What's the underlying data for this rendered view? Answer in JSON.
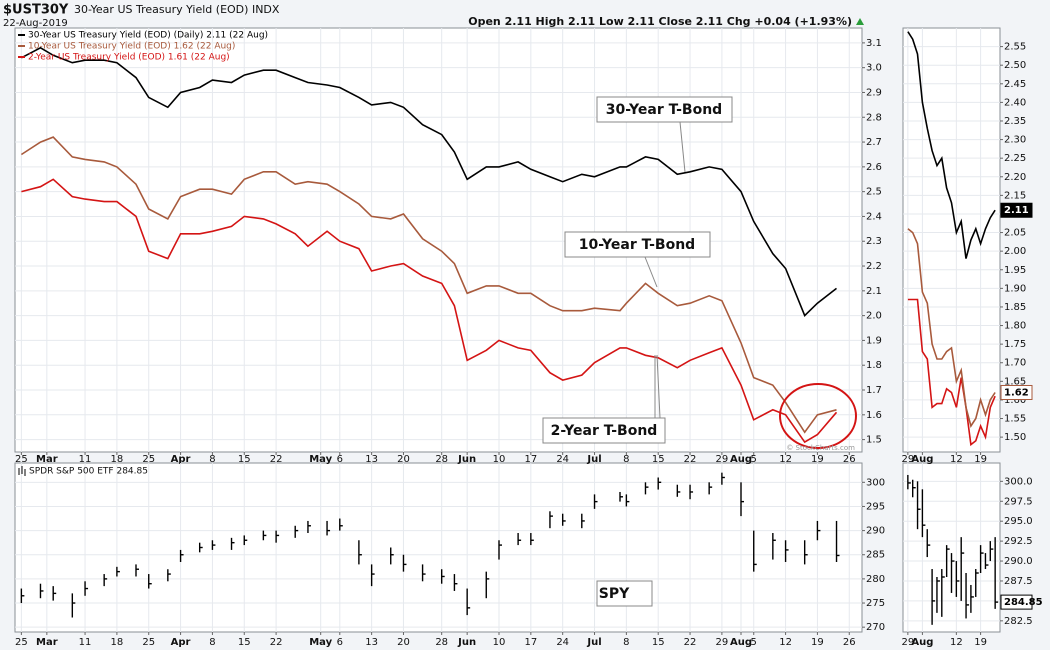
{
  "chart_data": [
    {
      "type": "line",
      "title": "$UST30Y",
      "subtitle": "30-Year US Treasury Yield (EOD) INDX",
      "date": "22-Aug-2019",
      "quote": "Open 2.11 High 2.11 Low 2.11 Close 2.11 Chg +0.04 (+1.93%)",
      "watermark": "© StockCharts.com",
      "annotations": [
        "30-Year T-Bond",
        "10-Year T-Bond",
        "2-Year T-Bond"
      ],
      "grid": true,
      "xlim": [
        "2019-02-22",
        "2019-08-28"
      ],
      "xticks": [
        {
          "value": "2019-02-25",
          "label": "25"
        },
        {
          "value": "2019-03-01",
          "label": "Mar"
        },
        {
          "value": "2019-03-11",
          "label": "11"
        },
        {
          "value": "2019-03-18",
          "label": "18"
        },
        {
          "value": "2019-03-25",
          "label": "25"
        },
        {
          "value": "2019-04-01",
          "label": "Apr"
        },
        {
          "value": "2019-04-08",
          "label": "8"
        },
        {
          "value": "2019-04-15",
          "label": "15"
        },
        {
          "value": "2019-04-22",
          "label": "22"
        },
        {
          "value": "2019-05-01",
          "label": "May"
        },
        {
          "value": "2019-05-06",
          "label": "6"
        },
        {
          "value": "2019-05-13",
          "label": "13"
        },
        {
          "value": "2019-05-20",
          "label": "20"
        },
        {
          "value": "2019-05-28",
          "label": "28"
        },
        {
          "value": "2019-06-03",
          "label": "Jun"
        },
        {
          "value": "2019-06-10",
          "label": "10"
        },
        {
          "value": "2019-06-17",
          "label": "17"
        },
        {
          "value": "2019-06-24",
          "label": "24"
        },
        {
          "value": "2019-07-01",
          "label": "Jul"
        },
        {
          "value": "2019-07-08",
          "label": "8"
        },
        {
          "value": "2019-07-15",
          "label": "15"
        },
        {
          "value": "2019-07-22",
          "label": "22"
        },
        {
          "value": "2019-07-29",
          "label": "29"
        },
        {
          "value": "2019-08-01",
          "label": "Aug"
        },
        {
          "value": "2019-08-05",
          "label": "5"
        },
        {
          "value": "2019-08-12",
          "label": "12"
        },
        {
          "value": "2019-08-19",
          "label": "19"
        },
        {
          "value": "2019-08-26",
          "label": "26"
        }
      ],
      "ylim": [
        1.45,
        3.16
      ],
      "yticks": [
        1.5,
        1.6,
        1.7,
        1.8,
        1.9,
        {
          "value": 2,
          "label": "2.0"
        },
        2.1,
        2.2,
        2.3,
        2.4,
        2.5,
        2.6,
        2.7,
        2.8,
        2.9,
        {
          "value": 3,
          "label": "3.0"
        },
        3.1
      ],
      "x": [
        "2019-02-25",
        "2019-02-28",
        "2019-03-04",
        "2019-03-07",
        "2019-03-11",
        "2019-03-14",
        "2019-03-18",
        "2019-03-21",
        "2019-03-25",
        "2019-03-28",
        "2019-04-01",
        "2019-04-04",
        "2019-04-08",
        "2019-04-11",
        "2019-04-15",
        "2019-04-18",
        "2019-04-22",
        "2019-04-25",
        "2019-04-29",
        "2019-05-02",
        "2019-05-06",
        "2019-05-09",
        "2019-05-13",
        "2019-05-16",
        "2019-05-20",
        "2019-05-23",
        "2019-05-28",
        "2019-05-30",
        "2019-06-03",
        "2019-06-06",
        "2019-06-10",
        "2019-06-13",
        "2019-06-17",
        "2019-06-20",
        "2019-06-24",
        "2019-06-27",
        "2019-07-01",
        "2019-07-05",
        "2019-07-08",
        "2019-07-11",
        "2019-07-15",
        "2019-07-18",
        "2019-07-22",
        "2019-07-25",
        "2019-07-29",
        "2019-08-01",
        "2019-08-05",
        "2019-08-08",
        "2019-08-12",
        "2019-08-15",
        "2019-08-19",
        "2019-08-22"
      ],
      "series": [
        {
          "name": "30-Year US Treasury Yield (EOD) (Daily) 2.11 (22 Aug)",
          "color": "#000000",
          "values": [
            3.04,
            3.08,
            3.05,
            3.02,
            3.03,
            3.03,
            3.02,
            2.96,
            2.88,
            2.84,
            2.9,
            2.92,
            2.95,
            2.94,
            2.97,
            2.99,
            2.99,
            2.96,
            2.94,
            2.93,
            2.92,
            2.88,
            2.85,
            2.86,
            2.84,
            2.77,
            2.73,
            2.66,
            2.55,
            2.6,
            2.6,
            2.62,
            2.59,
            2.56,
            2.54,
            2.57,
            2.56,
            2.6,
            2.6,
            2.64,
            2.63,
            2.57,
            2.58,
            2.6,
            2.59,
            2.5,
            2.38,
            2.25,
            2.19,
            2.0,
            2.05,
            2.11
          ]
        },
        {
          "name": "10-Year US Treasury Yield (EOD) 1.62 (22 Aug)",
          "color": "#a85a3c",
          "values": [
            2.65,
            2.7,
            2.72,
            2.64,
            2.63,
            2.62,
            2.6,
            2.53,
            2.43,
            2.39,
            2.48,
            2.51,
            2.51,
            2.49,
            2.55,
            2.58,
            2.58,
            2.53,
            2.54,
            2.53,
            2.5,
            2.45,
            2.4,
            2.39,
            2.41,
            2.31,
            2.26,
            2.21,
            2.09,
            2.12,
            2.12,
            2.09,
            2.09,
            2.04,
            2.02,
            2.02,
            2.03,
            2.02,
            2.05,
            2.13,
            2.09,
            2.04,
            2.05,
            2.08,
            2.06,
            1.89,
            1.75,
            1.72,
            1.65,
            1.53,
            1.6,
            1.62
          ]
        },
        {
          "name": "2-Year US Treasury Yield (EOD) 1.61 (22 Aug)",
          "color": "#d41414",
          "values": [
            2.5,
            2.52,
            2.55,
            2.48,
            2.47,
            2.46,
            2.46,
            2.4,
            2.26,
            2.23,
            2.33,
            2.33,
            2.34,
            2.36,
            2.4,
            2.39,
            2.37,
            2.33,
            2.28,
            2.34,
            2.3,
            2.27,
            2.18,
            2.2,
            2.21,
            2.16,
            2.13,
            2.04,
            1.82,
            1.86,
            1.9,
            1.87,
            1.86,
            1.77,
            1.74,
            1.76,
            1.81,
            1.87,
            1.87,
            1.84,
            1.83,
            1.79,
            1.82,
            1.85,
            1.87,
            1.72,
            1.58,
            1.62,
            1.6,
            1.49,
            1.52,
            1.61
          ]
        }
      ]
    },
    {
      "type": "line",
      "grid": true,
      "xlim": [
        "2019-07-26",
        "2019-08-23"
      ],
      "xticks": [
        {
          "value": "2019-07-29",
          "label": "29"
        },
        {
          "value": "2019-08-01",
          "label": "Aug"
        },
        {
          "value": "2019-08-12",
          "label": "12"
        },
        {
          "value": "2019-08-19",
          "label": "19"
        }
      ],
      "ylim": [
        1.46,
        2.6
      ],
      "yticks": [
        {
          "value": 1.5,
          "label": "1.50"
        },
        1.55,
        {
          "value": 1.6,
          "label": "1.60"
        },
        1.65,
        {
          "value": 1.7,
          "label": "1.70"
        },
        1.75,
        {
          "value": 1.8,
          "label": "1.80"
        },
        1.85,
        {
          "value": 1.9,
          "label": "1.90"
        },
        1.95,
        {
          "value": 2,
          "label": "2.00"
        },
        2.05,
        {
          "value": 2.1,
          "label": "2.10"
        },
        2.15,
        {
          "value": 2.2,
          "label": "2.20"
        },
        2.25,
        {
          "value": 2.3,
          "label": "2.30"
        },
        2.35,
        {
          "value": 2.4,
          "label": "2.40"
        },
        2.45,
        {
          "value": 2.5,
          "label": "2.50"
        },
        2.55
      ],
      "x": [
        "2019-07-29",
        "2019-07-30",
        "2019-07-31",
        "2019-08-01",
        "2019-08-02",
        "2019-08-05",
        "2019-08-06",
        "2019-08-07",
        "2019-08-08",
        "2019-08-09",
        "2019-08-12",
        "2019-08-13",
        "2019-08-14",
        "2019-08-15",
        "2019-08-16",
        "2019-08-19",
        "2019-08-20",
        "2019-08-21",
        "2019-08-22"
      ],
      "series": [
        {
          "color": "#000000",
          "tag": true,
          "values": [
            2.59,
            2.57,
            2.53,
            2.4,
            2.33,
            2.27,
            2.23,
            2.25,
            2.17,
            2.13,
            2.05,
            2.08,
            1.98,
            2.03,
            2.06,
            2.02,
            2.06,
            2.09,
            2.11
          ]
        },
        {
          "color": "#d41414",
          "values": [
            1.87,
            1.87,
            1.87,
            1.73,
            1.71,
            1.58,
            1.59,
            1.59,
            1.63,
            1.62,
            1.58,
            1.66,
            1.58,
            1.48,
            1.49,
            1.53,
            1.5,
            1.58,
            1.61
          ]
        },
        {
          "color": "#a85a3c",
          "tag": true,
          "values": [
            2.06,
            2.05,
            2.02,
            1.89,
            1.86,
            1.75,
            1.71,
            1.71,
            1.73,
            1.74,
            1.65,
            1.68,
            1.58,
            1.53,
            1.55,
            1.6,
            1.56,
            1.6,
            1.62
          ]
        }
      ]
    },
    {
      "type": "hlc",
      "name": "SPDR S&P 500 ETF 284.85",
      "annotations": [
        "SPY"
      ],
      "grid": true,
      "color": "#000000",
      "xlim": [
        "2019-02-22",
        "2019-08-28"
      ],
      "xticks": [
        {
          "value": "2019-02-25",
          "label": "25"
        },
        {
          "value": "2019-03-01",
          "label": "Mar"
        },
        {
          "value": "2019-03-11",
          "label": "11"
        },
        {
          "value": "2019-03-18",
          "label": "18"
        },
        {
          "value": "2019-03-25",
          "label": "25"
        },
        {
          "value": "2019-04-01",
          "label": "Apr"
        },
        {
          "value": "2019-04-08",
          "label": "8"
        },
        {
          "value": "2019-04-15",
          "label": "15"
        },
        {
          "value": "2019-04-22",
          "label": "22"
        },
        {
          "value": "2019-05-01",
          "label": "May"
        },
        {
          "value": "2019-05-06",
          "label": "6"
        },
        {
          "value": "2019-05-13",
          "label": "13"
        },
        {
          "value": "2019-05-20",
          "label": "20"
        },
        {
          "value": "2019-05-28",
          "label": "28"
        },
        {
          "value": "2019-06-03",
          "label": "Jun"
        },
        {
          "value": "2019-06-10",
          "label": "10"
        },
        {
          "value": "2019-06-17",
          "label": "17"
        },
        {
          "value": "2019-06-24",
          "label": "24"
        },
        {
          "value": "2019-07-01",
          "label": "Jul"
        },
        {
          "value": "2019-07-08",
          "label": "8"
        },
        {
          "value": "2019-07-15",
          "label": "15"
        },
        {
          "value": "2019-07-22",
          "label": "22"
        },
        {
          "value": "2019-07-29",
          "label": "29"
        },
        {
          "value": "2019-08-01",
          "label": "Aug"
        },
        {
          "value": "2019-08-05",
          "label": "5"
        },
        {
          "value": "2019-08-12",
          "label": "12"
        },
        {
          "value": "2019-08-19",
          "label": "19"
        },
        {
          "value": "2019-08-26",
          "label": "26"
        }
      ],
      "ylim": [
        269,
        304
      ],
      "yticks": [
        270,
        275,
        280,
        285,
        290,
        295,
        300
      ],
      "x": [
        "2019-02-25",
        "2019-02-28",
        "2019-03-04",
        "2019-03-07",
        "2019-03-11",
        "2019-03-14",
        "2019-03-18",
        "2019-03-21",
        "2019-03-25",
        "2019-03-28",
        "2019-04-01",
        "2019-04-04",
        "2019-04-08",
        "2019-04-11",
        "2019-04-15",
        "2019-04-18",
        "2019-04-22",
        "2019-04-25",
        "2019-04-29",
        "2019-05-02",
        "2019-05-06",
        "2019-05-09",
        "2019-05-13",
        "2019-05-16",
        "2019-05-20",
        "2019-05-23",
        "2019-05-28",
        "2019-05-30",
        "2019-06-03",
        "2019-06-06",
        "2019-06-10",
        "2019-06-13",
        "2019-06-17",
        "2019-06-20",
        "2019-06-24",
        "2019-06-27",
        "2019-07-01",
        "2019-07-05",
        "2019-07-08",
        "2019-07-11",
        "2019-07-15",
        "2019-07-18",
        "2019-07-22",
        "2019-07-25",
        "2019-07-29",
        "2019-08-01",
        "2019-08-05",
        "2019-08-08",
        "2019-08-12",
        "2019-08-15",
        "2019-08-19",
        "2019-08-22"
      ],
      "high": [
        278,
        279,
        278.5,
        277,
        279.5,
        281,
        282.5,
        283,
        281,
        282,
        286,
        287.5,
        288,
        288.5,
        289,
        290,
        290,
        291,
        292,
        292,
        292.5,
        288,
        283,
        286.5,
        285,
        283,
        282,
        281,
        278,
        281.5,
        288,
        289.5,
        289.5,
        294,
        293.5,
        293.5,
        297.5,
        298,
        297.5,
        300,
        301,
        299.5,
        299.5,
        300,
        302,
        300,
        290,
        289.5,
        288,
        288,
        292,
        292
      ],
      "low": [
        275,
        276,
        275.5,
        272,
        276.5,
        278.5,
        280.5,
        280.5,
        278,
        279.5,
        283.5,
        285.5,
        286,
        286,
        287,
        288,
        287.5,
        288.5,
        289.5,
        289,
        290,
        283,
        278.5,
        283,
        281.5,
        279.5,
        279,
        277.5,
        272.5,
        276,
        284,
        287,
        287,
        290.5,
        291,
        290.5,
        294.5,
        296,
        295,
        297.5,
        298.5,
        297,
        296.5,
        297.5,
        299.5,
        293,
        281.5,
        284,
        283.5,
        283,
        288,
        283.5
      ],
      "close": [
        276.5,
        277.5,
        277,
        275,
        278,
        280,
        281.5,
        282,
        279,
        281,
        285,
        286.5,
        287,
        287.5,
        288,
        289,
        289,
        290,
        291,
        290,
        291,
        285,
        281,
        285,
        283,
        281,
        280.5,
        279,
        274,
        280,
        287,
        288,
        288,
        293,
        292,
        292,
        296,
        297,
        296,
        299,
        300,
        298,
        298,
        299,
        301,
        296,
        283,
        288,
        286,
        285,
        290,
        284.85
      ]
    },
    {
      "type": "hlc",
      "grid": true,
      "tag": true,
      "color": "#000000",
      "xlim": [
        "2019-07-26",
        "2019-08-23"
      ],
      "xticks": [
        {
          "value": "2019-07-29",
          "label": "29"
        },
        {
          "value": "2019-08-01",
          "label": "Aug"
        },
        {
          "value": "2019-08-12",
          "label": "12"
        },
        {
          "value": "2019-08-19",
          "label": "19"
        }
      ],
      "ylim": [
        281.1,
        302.3
      ],
      "yticks": [
        282.5,
        {
          "value": 285,
          "label": "285.0"
        },
        287.5,
        {
          "value": 290,
          "label": "290.0"
        },
        292.5,
        {
          "value": 295,
          "label": "295.0"
        },
        297.5,
        {
          "value": 300,
          "label": "300.0"
        }
      ],
      "x": [
        "2019-07-29",
        "2019-07-30",
        "2019-07-31",
        "2019-08-01",
        "2019-08-02",
        "2019-08-05",
        "2019-08-06",
        "2019-08-07",
        "2019-08-08",
        "2019-08-09",
        "2019-08-12",
        "2019-08-13",
        "2019-08-14",
        "2019-08-15",
        "2019-08-16",
        "2019-08-19",
        "2019-08-20",
        "2019-08-21",
        "2019-08-22"
      ],
      "high": [
        300.8,
        300.2,
        300,
        299,
        294,
        289,
        288,
        289,
        292,
        291,
        290,
        293,
        288.5,
        287,
        289,
        292,
        291,
        292.5,
        293
      ],
      "low": [
        299,
        298,
        294,
        293,
        290.5,
        282,
        283.5,
        283,
        288,
        286,
        285.5,
        285,
        282.8,
        283.5,
        285.5,
        288.5,
        289,
        290,
        284
      ],
      "close": [
        299.8,
        299.2,
        296.5,
        294.5,
        292,
        285,
        287.5,
        288,
        291.5,
        290,
        287.5,
        291,
        284.5,
        285.5,
        288.5,
        291,
        289.5,
        291.5,
        284.85
      ]
    }
  ]
}
